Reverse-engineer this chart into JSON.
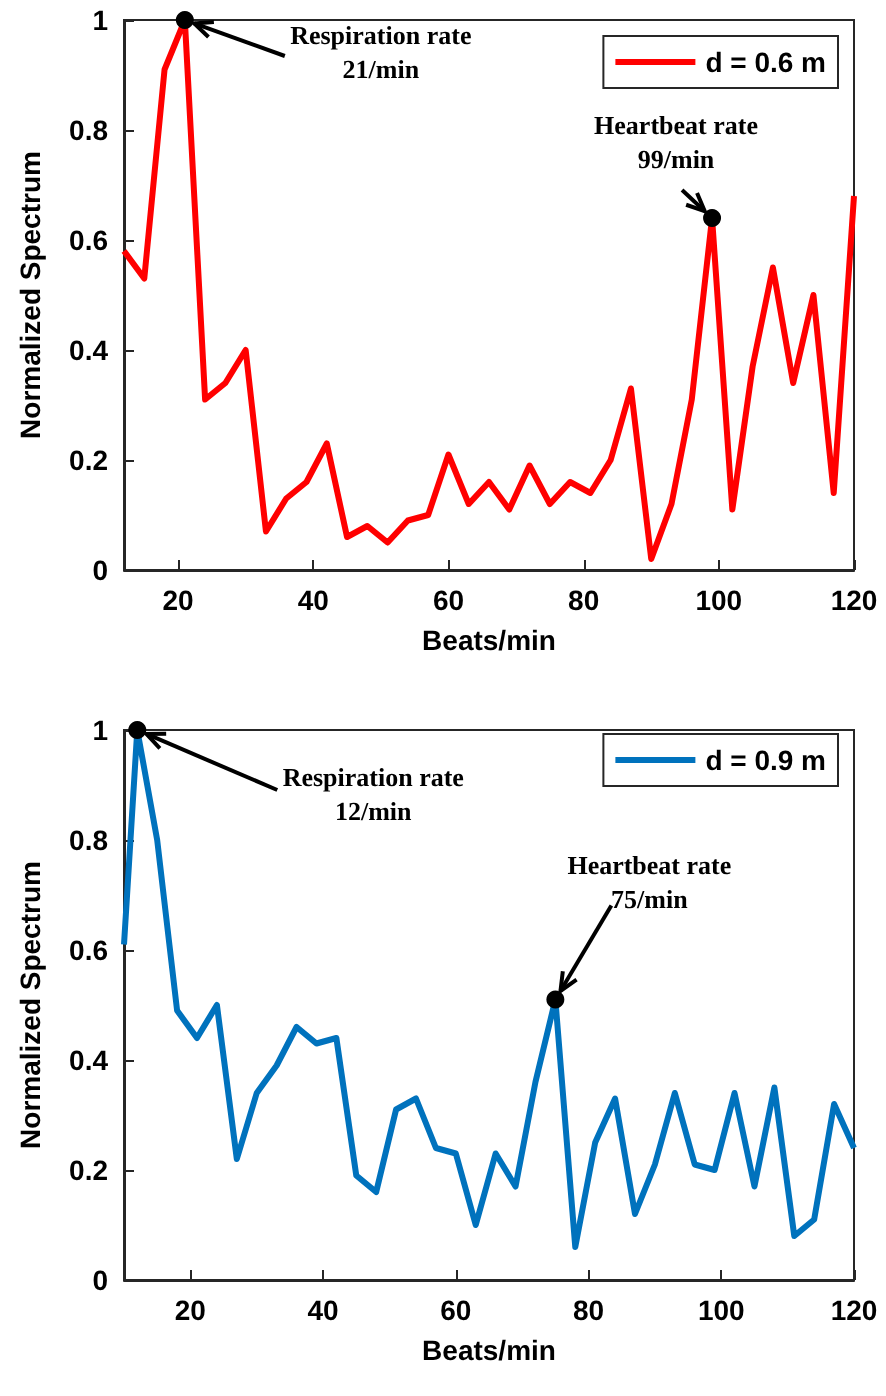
{
  "chart_data": [
    {
      "type": "line",
      "xlabel": "Beats/min",
      "ylabel": "Normalized Spectrum",
      "x": [
        12,
        15,
        18,
        21,
        24,
        27,
        30,
        33,
        36,
        39,
        42,
        45,
        48,
        51,
        54,
        57,
        60,
        63,
        66,
        69,
        72,
        75,
        78,
        81,
        84,
        87,
        90,
        93,
        96,
        99,
        102,
        105,
        108,
        111,
        114,
        117,
        120
      ],
      "series": [
        {
          "name": "d = 0.6 m",
          "color": "#ff0000",
          "values": [
            0.58,
            0.53,
            0.91,
            1.0,
            0.31,
            0.34,
            0.4,
            0.07,
            0.13,
            0.16,
            0.23,
            0.06,
            0.08,
            0.05,
            0.09,
            0.1,
            0.21,
            0.12,
            0.16,
            0.11,
            0.19,
            0.12,
            0.16,
            0.14,
            0.2,
            0.33,
            0.02,
            0.12,
            0.31,
            0.64,
            0.11,
            0.37,
            0.55,
            0.34,
            0.5,
            0.14,
            0.68
          ]
        }
      ],
      "xlim": [
        12,
        120
      ],
      "xticks": [
        20,
        40,
        60,
        80,
        100,
        120
      ],
      "ylim": [
        0,
        1
      ],
      "yticks": [
        0,
        0.2,
        0.4,
        0.6,
        0.8,
        1
      ],
      "grid": false,
      "legend": "top right",
      "annotations": [
        {
          "text": "Respiration rate\n21/min",
          "x": 21,
          "y": 1.0
        },
        {
          "text": "Heartbeat rate\n99/min",
          "x": 99,
          "y": 0.64
        }
      ]
    },
    {
      "type": "line",
      "xlabel": "Beats/min",
      "ylabel": "Normalized Spectrum",
      "x": [
        10,
        12,
        15,
        18,
        21,
        24,
        27,
        30,
        33,
        36,
        39,
        42,
        45,
        48,
        51,
        54,
        57,
        60,
        63,
        66,
        69,
        72,
        75,
        78,
        81,
        84,
        87,
        90,
        93,
        96,
        99,
        102,
        105,
        108,
        111,
        114,
        117,
        120
      ],
      "series": [
        {
          "name": "d = 0.9 m",
          "color": "#0072bd",
          "values": [
            0.61,
            1.0,
            0.8,
            0.49,
            0.44,
            0.5,
            0.22,
            0.34,
            0.39,
            0.46,
            0.43,
            0.44,
            0.19,
            0.16,
            0.31,
            0.33,
            0.24,
            0.23,
            0.1,
            0.23,
            0.17,
            0.36,
            0.51,
            0.06,
            0.25,
            0.33,
            0.12,
            0.21,
            0.34,
            0.21,
            0.2,
            0.34,
            0.17,
            0.35,
            0.08,
            0.11,
            0.32,
            0.24
          ]
        }
      ],
      "xlim": [
        10,
        120
      ],
      "xticks": [
        20,
        40,
        60,
        80,
        100,
        120
      ],
      "ylim": [
        0,
        1
      ],
      "yticks": [
        0,
        0.2,
        0.4,
        0.6,
        0.8,
        1
      ],
      "grid": false,
      "legend": "top right",
      "annotations": [
        {
          "text": "Respiration rate\n12/min",
          "x": 12,
          "y": 1.0
        },
        {
          "text": "Heartbeat rate\n75/min",
          "x": 75,
          "y": 0.51
        }
      ]
    }
  ]
}
